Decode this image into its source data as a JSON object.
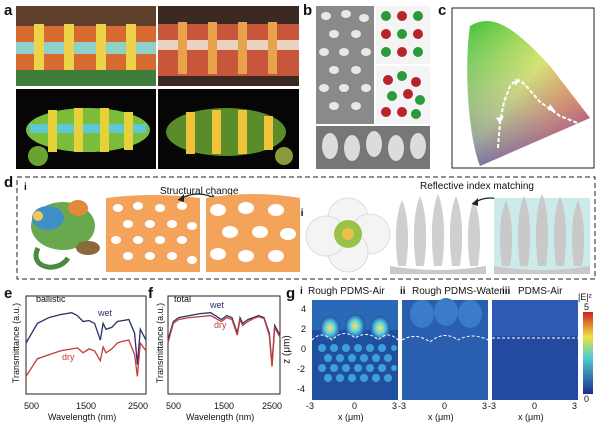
{
  "panel_labels": {
    "a": "a",
    "b": "b",
    "c": "c",
    "d": "d",
    "e": "e",
    "f": "f",
    "g": "g"
  },
  "panel_d": {
    "sub_i": "i",
    "sub_ii": "ii",
    "structural_change": "Structural change",
    "index_matching": "Reflective index matching"
  },
  "panel_e": {
    "inset": "ballistic",
    "wet": "wet",
    "dry": "dry",
    "xlabel": "Wavelength (nm)",
    "ylabel": "Transmittance (a.u.)",
    "xticks": [
      "500",
      "1500",
      "2500"
    ]
  },
  "panel_f": {
    "inset": "total",
    "wet": "wet",
    "dry": "dry",
    "xlabel": "Wavelength (nm)",
    "ylabel": "Transmittance (a.u.)",
    "xticks": [
      "500",
      "1500",
      "2500"
    ]
  },
  "panel_g": {
    "maps": [
      {
        "num": "i",
        "title": "Rough PDMS-Air"
      },
      {
        "num": "ii",
        "title": "Rough PDMS-Water"
      },
      {
        "num": "iii",
        "title": "PDMS-Air"
      }
    ],
    "ylabel": "z (μm)",
    "yticks": [
      "4",
      "2",
      "0",
      "-2",
      "-4"
    ],
    "xlabel": "x (μm)",
    "xticks": [
      "-3",
      "0",
      "3"
    ],
    "colorbar_label": "|E|²",
    "colorbar_max": "5",
    "colorbar_min": "0"
  },
  "chart_data": [
    {
      "type": "line",
      "title": "ballistic",
      "xlabel": "Wavelength (nm)",
      "ylabel": "Transmittance (a.u.)",
      "xlim": [
        400,
        2500
      ],
      "x": [
        400,
        600,
        800,
        1000,
        1200,
        1300,
        1400,
        1500,
        1600,
        1700,
        1750,
        1800,
        1900,
        2000,
        2100,
        2200,
        2300,
        2350,
        2400,
        2500
      ],
      "series": [
        {
          "name": "wet",
          "color": "#2b2f6b",
          "values": [
            0.52,
            0.72,
            0.78,
            0.81,
            0.83,
            0.8,
            0.74,
            0.75,
            0.72,
            0.55,
            0.72,
            0.66,
            0.68,
            0.74,
            0.75,
            0.76,
            0.62,
            0.3,
            0.66,
            0.55
          ]
        },
        {
          "name": "dry",
          "color": "#c23a3a",
          "values": [
            0.18,
            0.36,
            0.4,
            0.44,
            0.46,
            0.47,
            0.42,
            0.46,
            0.44,
            0.34,
            0.48,
            0.42,
            0.46,
            0.52,
            0.54,
            0.55,
            0.4,
            0.18,
            0.52,
            0.44
          ]
        }
      ]
    },
    {
      "type": "line",
      "title": "total",
      "xlabel": "Wavelength (nm)",
      "ylabel": "Transmittance (a.u.)",
      "xlim": [
        400,
        2500
      ],
      "x": [
        400,
        500,
        600,
        800,
        1000,
        1200,
        1400,
        1500,
        1600,
        1700,
        1750,
        1800,
        1900,
        2000,
        2100,
        2200,
        2300,
        2350,
        2400,
        2500
      ],
      "series": [
        {
          "name": "wet",
          "color": "#2b2f6b",
          "values": [
            0.55,
            0.74,
            0.78,
            0.8,
            0.82,
            0.83,
            0.76,
            0.8,
            0.78,
            0.62,
            0.78,
            0.72,
            0.76,
            0.78,
            0.8,
            0.78,
            0.62,
            0.3,
            0.7,
            0.6
          ]
        },
        {
          "name": "dry",
          "color": "#c23a3a",
          "values": [
            0.52,
            0.72,
            0.76,
            0.78,
            0.79,
            0.8,
            0.74,
            0.78,
            0.76,
            0.6,
            0.76,
            0.7,
            0.74,
            0.77,
            0.79,
            0.77,
            0.6,
            0.28,
            0.68,
            0.58
          ]
        }
      ]
    }
  ],
  "colors": {
    "orange": "#f4a35a",
    "wet": "#2b2f6b",
    "dry": "#c23a3a",
    "map_bg": "#1f4f9e"
  }
}
